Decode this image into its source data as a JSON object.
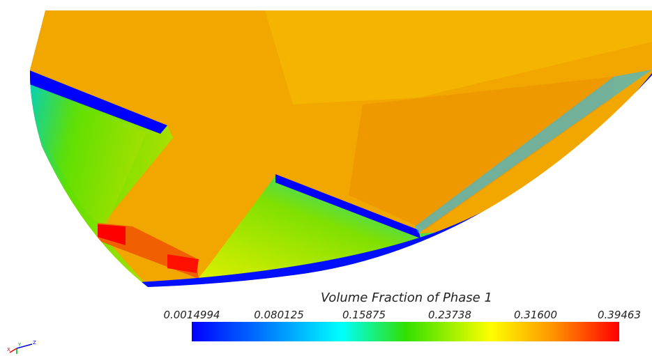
{
  "colorbar": {
    "title": "Volume Fraction of Phase 1",
    "ticks": [
      "0.0014994",
      "0.080125",
      "0.15875",
      "0.23738",
      "0.31600",
      "0.39463"
    ]
  },
  "axes": {
    "x": "X",
    "y": "Y",
    "z": "Z"
  }
}
